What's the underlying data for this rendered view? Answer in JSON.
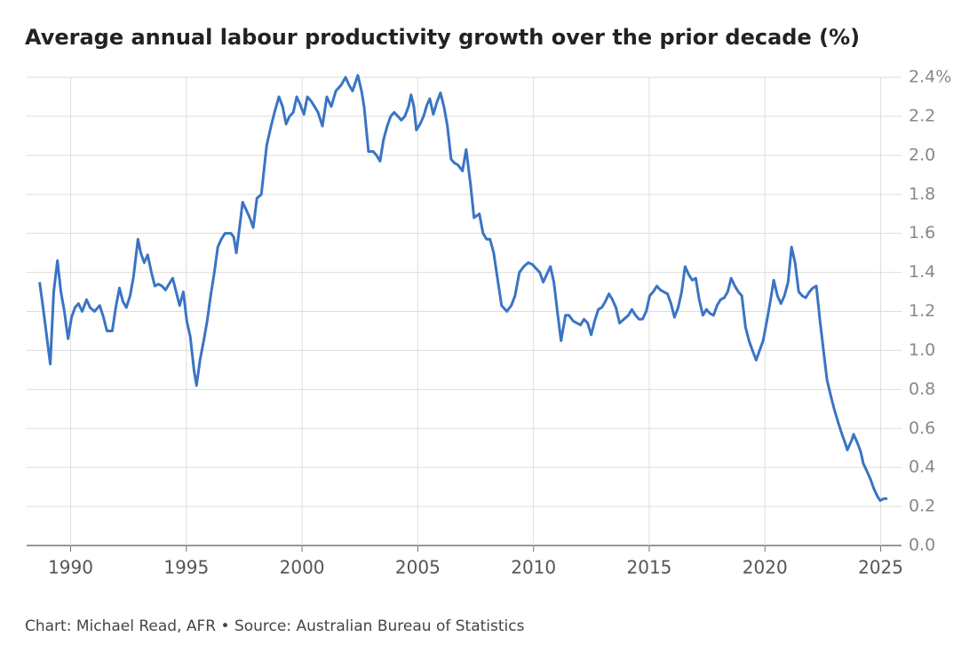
{
  "chart_data": {
    "type": "line",
    "title": "Average annual labour productivity growth over the prior decade (%)",
    "source": "Chart: Michael Read, AFR • Source: Australian Bureau of Statistics",
    "color": "#3a74c4",
    "grid": true,
    "xlim": [
      1988.1,
      2025.9
    ],
    "xticks": [
      1990,
      1995,
      2000,
      2005,
      2010,
      2015,
      2020,
      2025
    ],
    "ylim": [
      0,
      2.4
    ],
    "yticks": [
      {
        "value": 0,
        "label": "0.0"
      },
      0.2,
      0.4,
      0.6,
      0.8,
      {
        "value": 1,
        "label": "1.0"
      },
      1.2,
      1.4,
      1.6,
      1.8,
      {
        "value": 2,
        "label": "2.0"
      },
      2.2,
      {
        "value": 2.4,
        "label": "2.4%"
      }
    ],
    "x": [
      1988.66,
      1988.81,
      1989.12,
      1989.27,
      1989.43,
      1989.58,
      1989.73,
      1989.89,
      1990.04,
      1990.19,
      1990.34,
      1990.5,
      1990.69,
      1990.84,
      1991.03,
      1991.26,
      1991.42,
      1991.57,
      1991.8,
      1991.95,
      1992.11,
      1992.26,
      1992.41,
      1992.57,
      1992.72,
      1992.91,
      1993.03,
      1993.18,
      1993.33,
      1993.49,
      1993.64,
      1993.79,
      1993.95,
      1994.1,
      1994.25,
      1994.41,
      1994.56,
      1994.71,
      1994.87,
      1995.02,
      1995.17,
      1995.33,
      1995.44,
      1995.59,
      1995.75,
      1995.9,
      1996.05,
      1996.21,
      1996.36,
      1996.51,
      1996.67,
      1996.93,
      1997.05,
      1997.16,
      1997.32,
      1997.43,
      1997.59,
      1997.74,
      1997.89,
      1998.05,
      1998.24,
      1998.47,
      1998.66,
      1998.81,
      1999.0,
      1999.16,
      1999.31,
      1999.46,
      1999.62,
      1999.77,
      1999.92,
      2000.08,
      2000.23,
      2000.38,
      2000.54,
      2000.69,
      2000.88,
      2001.07,
      2001.26,
      2001.46,
      2001.69,
      2001.88,
      2002.03,
      2002.18,
      2002.41,
      2002.57,
      2002.68,
      2002.87,
      2003.07,
      2003.22,
      2003.37,
      2003.52,
      2003.68,
      2003.83,
      2003.98,
      2004.14,
      2004.29,
      2004.44,
      2004.6,
      2004.71,
      2004.83,
      2004.94,
      2005.1,
      2005.25,
      2005.4,
      2005.52,
      2005.67,
      2005.82,
      2005.98,
      2006.13,
      2006.28,
      2006.44,
      2006.59,
      2006.74,
      2006.93,
      2007.09,
      2007.28,
      2007.43,
      2007.66,
      2007.82,
      2007.97,
      2008.12,
      2008.28,
      2008.43,
      2008.62,
      2008.85,
      2009.04,
      2009.2,
      2009.39,
      2009.58,
      2009.77,
      2009.96,
      2010.11,
      2010.27,
      2010.42,
      2010.73,
      2010.88,
      2011.03,
      2011.19,
      2011.38,
      2011.53,
      2011.72,
      2011.88,
      2012.03,
      2012.18,
      2012.34,
      2012.49,
      2012.64,
      2012.8,
      2012.95,
      2013.1,
      2013.26,
      2013.41,
      2013.56,
      2013.72,
      2013.91,
      2014.1,
      2014.25,
      2014.41,
      2014.56,
      2014.71,
      2014.87,
      2015.02,
      2015.17,
      2015.33,
      2015.48,
      2015.63,
      2015.79,
      2015.94,
      2016.09,
      2016.25,
      2016.4,
      2016.55,
      2016.7,
      2016.86,
      2017.01,
      2017.16,
      2017.32,
      2017.47,
      2017.62,
      2017.78,
      2017.93,
      2018.08,
      2018.24,
      2018.39,
      2018.54,
      2018.7,
      2018.85,
      2019.0,
      2019.16,
      2019.31,
      2019.46,
      2019.62,
      2019.77,
      2019.92,
      2020.08,
      2020.23,
      2020.38,
      2020.54,
      2020.69,
      2020.84,
      2021.0,
      2021.15,
      2021.3,
      2021.46,
      2021.61,
      2021.76,
      2021.92,
      2022.07,
      2022.22,
      2022.38,
      2022.53,
      2022.68,
      2022.84,
      2022.99,
      2023.14,
      2023.3,
      2023.45,
      2023.56,
      2023.75,
      2023.83,
      2023.98,
      2024.14,
      2024.25,
      2024.41,
      2024.56,
      2024.71,
      2024.87,
      2024.98,
      2025.13,
      2025.29
    ],
    "values": [
      1.35,
      1.22,
      0.93,
      1.3,
      1.46,
      1.3,
      1.2,
      1.06,
      1.17,
      1.22,
      1.24,
      1.2,
      1.26,
      1.22,
      1.2,
      1.23,
      1.17,
      1.1,
      1.1,
      1.22,
      1.32,
      1.25,
      1.22,
      1.28,
      1.38,
      1.57,
      1.5,
      1.45,
      1.49,
      1.4,
      1.33,
      1.34,
      1.33,
      1.31,
      1.34,
      1.37,
      1.3,
      1.23,
      1.3,
      1.15,
      1.07,
      0.9,
      0.82,
      0.95,
      1.05,
      1.15,
      1.28,
      1.4,
      1.53,
      1.57,
      1.6,
      1.6,
      1.58,
      1.5,
      1.65,
      1.76,
      1.72,
      1.68,
      1.63,
      1.78,
      1.8,
      2.05,
      2.15,
      2.22,
      2.3,
      2.25,
      2.16,
      2.2,
      2.22,
      2.3,
      2.26,
      2.21,
      2.3,
      2.28,
      2.25,
      2.22,
      2.15,
      2.3,
      2.25,
      2.33,
      2.36,
      2.4,
      2.36,
      2.33,
      2.41,
      2.33,
      2.25,
      2.02,
      2.02,
      2.0,
      1.97,
      2.08,
      2.15,
      2.2,
      2.22,
      2.2,
      2.18,
      2.2,
      2.25,
      2.31,
      2.25,
      2.13,
      2.16,
      2.2,
      2.26,
      2.29,
      2.21,
      2.27,
      2.32,
      2.25,
      2.15,
      1.98,
      1.96,
      1.95,
      1.92,
      2.03,
      1.85,
      1.68,
      1.7,
      1.6,
      1.57,
      1.57,
      1.5,
      1.38,
      1.23,
      1.2,
      1.23,
      1.28,
      1.4,
      1.43,
      1.45,
      1.44,
      1.42,
      1.4,
      1.35,
      1.43,
      1.35,
      1.2,
      1.05,
      1.18,
      1.18,
      1.15,
      1.14,
      1.13,
      1.16,
      1.14,
      1.08,
      1.15,
      1.21,
      1.22,
      1.25,
      1.29,
      1.26,
      1.22,
      1.14,
      1.16,
      1.18,
      1.21,
      1.18,
      1.16,
      1.16,
      1.2,
      1.28,
      1.3,
      1.33,
      1.31,
      1.3,
      1.29,
      1.24,
      1.17,
      1.22,
      1.3,
      1.43,
      1.39,
      1.36,
      1.37,
      1.26,
      1.18,
      1.21,
      1.19,
      1.18,
      1.23,
      1.26,
      1.27,
      1.3,
      1.37,
      1.33,
      1.3,
      1.28,
      1.12,
      1.05,
      1.0,
      0.95,
      1.0,
      1.05,
      1.15,
      1.25,
      1.36,
      1.28,
      1.24,
      1.28,
      1.35,
      1.53,
      1.45,
      1.3,
      1.28,
      1.27,
      1.3,
      1.32,
      1.33,
      1.15,
      1.0,
      0.85,
      0.77,
      0.7,
      0.64,
      0.58,
      0.53,
      0.49,
      0.54,
      0.57,
      0.53,
      0.48,
      0.42,
      0.38,
      0.34,
      0.29,
      0.25,
      0.23,
      0.24,
      0.24
    ]
  }
}
